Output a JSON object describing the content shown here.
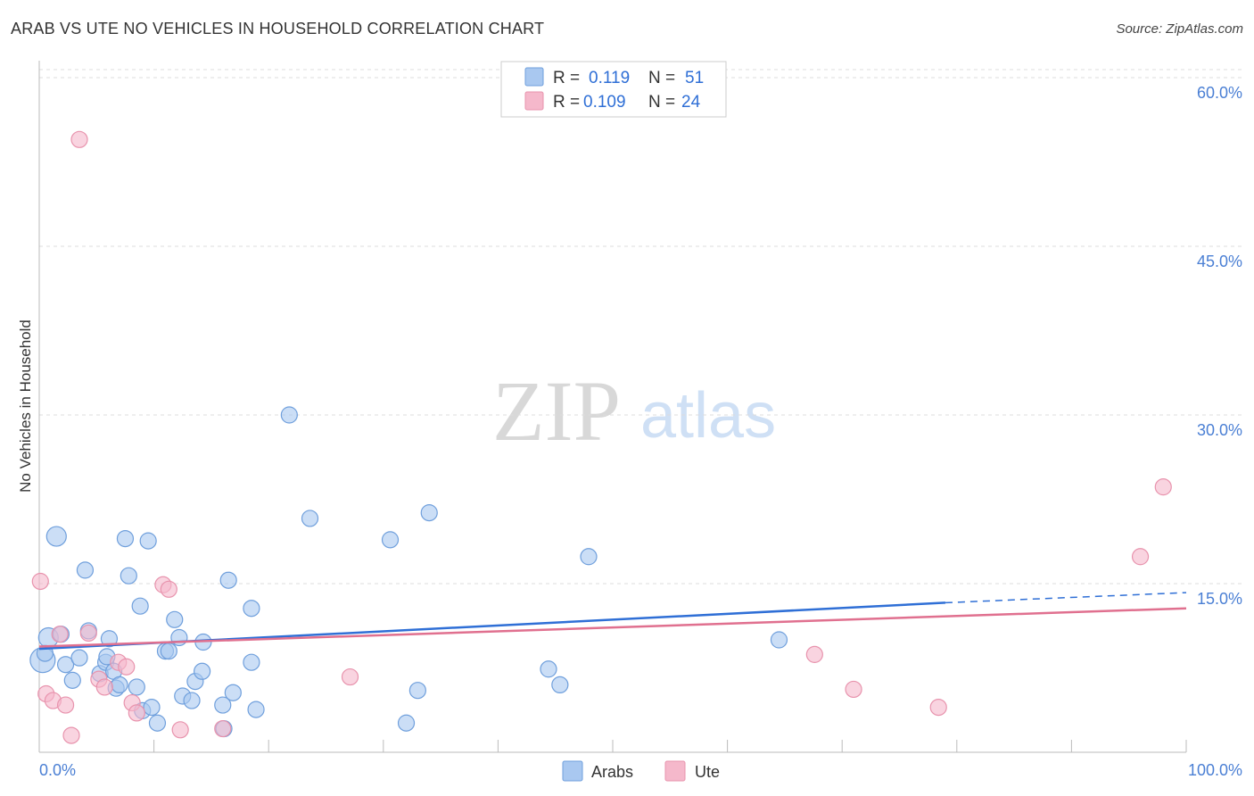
{
  "header": {
    "title": "ARAB VS UTE NO VEHICLES IN HOUSEHOLD CORRELATION CHART",
    "source": "Source: ZipAtlas.com"
  },
  "watermark": {
    "zip": "ZIP",
    "atlas": "atlas"
  },
  "colors": {
    "arabs_fill": "#a9c8f0",
    "arabs_stroke": "#6f9fdc",
    "arabs_line": "#2f6fd6",
    "ute_fill": "#f5b8cb",
    "ute_stroke": "#e893ad",
    "ute_line": "#e0708f",
    "grid": "#dddddd",
    "tick_label": "#4a7fd4"
  },
  "legend": {
    "r_label": "R =",
    "n_label": "N =",
    "rows": [
      {
        "r": "0.119",
        "n": "51"
      },
      {
        "r": "0.109",
        "n": "24"
      }
    ]
  },
  "bottom_legend": [
    "Arabs",
    "Ute"
  ],
  "chart_data": {
    "type": "scatter",
    "ylabel": "No Vehicles in Household",
    "x_tick_labels": [
      "0.0%",
      "100.0%"
    ],
    "y_tick_labels": [
      "15.0%",
      "30.0%",
      "45.0%",
      "60.0%"
    ],
    "y_ticks": [
      15,
      30,
      45,
      60
    ],
    "xlim": [
      0,
      100
    ],
    "ylim": [
      0,
      63
    ],
    "grid": "horizontal dashed",
    "legend_position": "top-center",
    "series": [
      {
        "name": "Arabs",
        "points": [
          [
            0.3,
            8.2
          ],
          [
            0.5,
            8.8
          ],
          [
            0.8,
            10.2
          ],
          [
            1.5,
            19.2
          ],
          [
            1.9,
            10.5
          ],
          [
            2.3,
            7.8
          ],
          [
            2.9,
            6.4
          ],
          [
            3.5,
            8.4
          ],
          [
            4.0,
            16.2
          ],
          [
            4.3,
            10.8
          ],
          [
            5.3,
            7.0
          ],
          [
            5.8,
            8.0
          ],
          [
            5.9,
            8.5
          ],
          [
            6.1,
            10.1
          ],
          [
            6.5,
            7.2
          ],
          [
            6.7,
            5.7
          ],
          [
            7.0,
            6.0
          ],
          [
            7.5,
            19.0
          ],
          [
            7.8,
            15.7
          ],
          [
            8.5,
            5.8
          ],
          [
            8.8,
            13.0
          ],
          [
            9.0,
            3.7
          ],
          [
            9.5,
            18.8
          ],
          [
            9.8,
            4.0
          ],
          [
            10.3,
            2.6
          ],
          [
            11.0,
            9.0
          ],
          [
            11.3,
            9.0
          ],
          [
            11.8,
            11.8
          ],
          [
            12.2,
            10.2
          ],
          [
            12.5,
            5.0
          ],
          [
            13.3,
            4.6
          ],
          [
            13.6,
            6.3
          ],
          [
            14.2,
            7.2
          ],
          [
            14.3,
            9.8
          ],
          [
            16.0,
            4.2
          ],
          [
            16.5,
            15.3
          ],
          [
            16.9,
            5.3
          ],
          [
            18.5,
            8.0
          ],
          [
            18.5,
            12.8
          ],
          [
            18.9,
            3.8
          ],
          [
            21.8,
            30.0
          ],
          [
            23.6,
            20.8
          ],
          [
            30.6,
            18.9
          ],
          [
            32.0,
            2.6
          ],
          [
            33.0,
            5.5
          ],
          [
            34.0,
            21.3
          ],
          [
            44.4,
            7.4
          ],
          [
            45.4,
            6.0
          ],
          [
            47.9,
            17.4
          ],
          [
            64.5,
            10.0
          ],
          [
            16.1,
            2.1
          ]
        ],
        "trend": {
          "x": [
            0,
            79
          ],
          "y": [
            9.2,
            13.3
          ],
          "dashed_to": [
            100,
            14.2
          ]
        }
      },
      {
        "name": "Ute",
        "points": [
          [
            0.1,
            15.2
          ],
          [
            0.6,
            5.2
          ],
          [
            1.2,
            4.6
          ],
          [
            1.8,
            10.5
          ],
          [
            2.3,
            4.2
          ],
          [
            2.8,
            1.5
          ],
          [
            3.5,
            54.5
          ],
          [
            4.3,
            10.6
          ],
          [
            5.2,
            6.5
          ],
          [
            5.7,
            5.8
          ],
          [
            6.9,
            8.0
          ],
          [
            7.6,
            7.6
          ],
          [
            8.1,
            4.4
          ],
          [
            8.5,
            3.5
          ],
          [
            10.8,
            14.9
          ],
          [
            11.3,
            14.5
          ],
          [
            12.3,
            2.0
          ],
          [
            16.0,
            2.1
          ],
          [
            27.1,
            6.7
          ],
          [
            67.6,
            8.7
          ],
          [
            71.0,
            5.6
          ],
          [
            78.4,
            4.0
          ],
          [
            96.0,
            17.4
          ],
          [
            98.0,
            23.6
          ]
        ],
        "trend": {
          "x": [
            0,
            100
          ],
          "y": [
            9.4,
            12.8
          ]
        }
      }
    ]
  }
}
